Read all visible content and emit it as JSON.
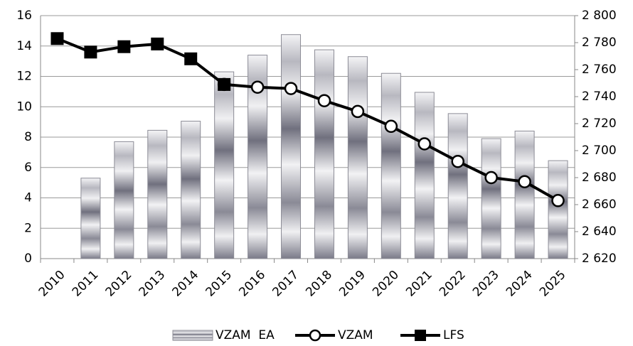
{
  "chart_data": {
    "type": "bar_line",
    "categories": [
      "2010",
      "2011",
      "2012",
      "2013",
      "2014",
      "2015",
      "2016",
      "2017",
      "2018",
      "2019",
      "2020",
      "2021",
      "2022",
      "2023",
      "2024",
      "2025"
    ],
    "series": [
      {
        "name": "VZAM  EA",
        "type": "bar",
        "color": "#8c8c96",
        "axis": "y",
        "values": [
          null,
          5.3,
          7.7,
          8.45,
          9.05,
          12.3,
          13.4,
          14.75,
          13.75,
          13.3,
          12.2,
          10.95,
          9.55,
          7.9,
          8.4,
          6.45
        ]
      },
      {
        "name": "VZAM",
        "type": "line",
        "marker": "circle",
        "color": "#000000",
        "axis": "y2",
        "values": [
          null,
          null,
          null,
          null,
          null,
          2749,
          2747,
          2746,
          2737,
          2729,
          2718,
          2705,
          2692,
          2680,
          2677,
          2663
        ]
      },
      {
        "name": "LFS",
        "type": "line",
        "marker": "square",
        "color": "#000000",
        "axis": "y2",
        "values": [
          2783,
          2773,
          2777,
          2779,
          2768,
          2749,
          null,
          null,
          null,
          null,
          null,
          null,
          null,
          null,
          null,
          null
        ]
      }
    ],
    "ylim": [
      0,
      16
    ],
    "yticks": [
      0,
      2,
      4,
      6,
      8,
      10,
      12,
      14,
      16
    ],
    "y2lim": [
      2620,
      2800
    ],
    "y2ticks": [
      {
        "value": 2620,
        "label": "2 620"
      },
      {
        "value": 2640,
        "label": "2 640"
      },
      {
        "value": 2660,
        "label": "2 660"
      },
      {
        "value": 2680,
        "label": "2 680"
      },
      {
        "value": 2700,
        "label": "2 700"
      },
      {
        "value": 2720,
        "label": "2 720"
      },
      {
        "value": 2740,
        "label": "2 740"
      },
      {
        "value": 2760,
        "label": "2 760"
      },
      {
        "value": 2780,
        "label": "2 780"
      },
      {
        "value": 2800,
        "label": "2 800"
      }
    ],
    "grid": true,
    "legend": "bottom"
  }
}
